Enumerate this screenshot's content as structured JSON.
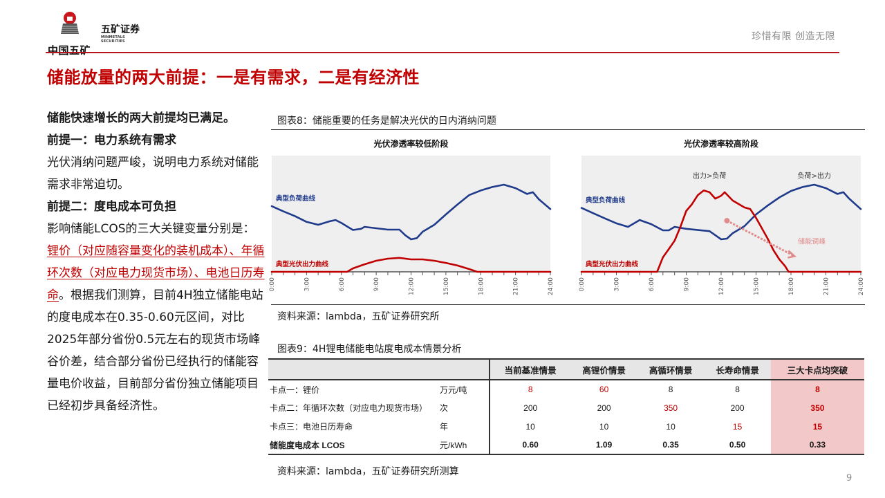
{
  "header": {
    "logo_cn": "中国五矿",
    "brand_cn": "五矿证券",
    "brand_en": "MINMETALS SECURITIES",
    "slogan": "珍惜有限  创造无限",
    "accent_color": "#b4161c"
  },
  "page_title": "储能放量的两大前提：一是有需求，二是有经济性",
  "left_text": {
    "headline": "储能快速增长的两大前提均已满足。",
    "premise1_title": "前提一：电力系统有需求",
    "premise1_body": "光伏消纳问题严峻，说明电力系统对储能需求非常迫切。",
    "premise2_title": "前提二：度电成本可负担",
    "premise2_intro": "影响储能LCOS的三大关键变量分别是：",
    "premise2_highlight": "锂价（对应随容量变化的装机成本）、年循环次数（对应电力现货市场）、电池日历寿命",
    "premise2_rest": "。根据我们测算，目前4H独立储能电站的度电成本在0.35-0.60元区间，对比2025年部分省份0.5元左右的现货市场峰谷价差，结合部分省份已经执行的储能容量电价收益，目前部分省份独立储能项目已经初步具备经济性。"
  },
  "figure8": {
    "caption": "图表8：储能重要的任务是解决光伏的日内消纳问题",
    "source": "资料来源：lambda，五矿证券研究所"
  },
  "figure9": {
    "caption": "图表9：4H锂电储能电站度电成本情景分析",
    "source": "资料来源：lambda，五矿证券研究所测算",
    "headers": [
      "",
      "",
      "当前基准情景",
      "高锂价情景",
      "高循环情景",
      "长寿命情景",
      "三大卡点均突破"
    ],
    "rows": [
      {
        "label": "卡点一：锂价",
        "unit": "万元/吨",
        "values": [
          "8",
          "60",
          "8",
          "8",
          "8"
        ]
      },
      {
        "label": "卡点二：年循环次数（对应电力现货市场）",
        "unit": "次",
        "values": [
          "200",
          "200",
          "350",
          "200",
          "350"
        ]
      },
      {
        "label": "卡点三：电池日历寿命",
        "unit": "年",
        "values": [
          "10",
          "10",
          "10",
          "15",
          "15"
        ]
      },
      {
        "label": "储能度电成本 LCOS",
        "unit": "元/kWh",
        "values": [
          "0.60",
          "1.09",
          "0.35",
          "0.50",
          "0.33"
        ]
      }
    ]
  },
  "chart_data": [
    {
      "type": "line",
      "title": "光伏渗透率较低阶段",
      "xlabel": "",
      "ylabel": "",
      "x_ticks": [
        "0:00",
        "3:00",
        "6:00",
        "9:00",
        "12:00",
        "15:00",
        "18:00",
        "21:00",
        "24:00"
      ],
      "xlim": [
        0,
        24
      ],
      "ylim": [
        0,
        100
      ],
      "grid": false,
      "series": [
        {
          "name": "典型负荷曲线",
          "color": "#1f3a8a",
          "x": [
            0,
            1,
            2,
            3,
            4,
            5,
            5.5,
            6,
            7,
            7.7,
            8,
            9,
            10,
            11,
            11.5,
            12,
            12.5,
            13,
            14,
            15,
            16,
            17,
            18,
            19,
            20,
            21,
            22,
            22.5,
            23,
            24
          ],
          "values": [
            56.5,
            52,
            48,
            43,
            40.5,
            43.5,
            44.6,
            42,
            36,
            37,
            38.7,
            37.5,
            36.3,
            36.3,
            31.5,
            28,
            29,
            34.5,
            40.5,
            49.4,
            58,
            66,
            70,
            73,
            75,
            72,
            67,
            68.5,
            62.5,
            54
          ]
        },
        {
          "name": "典型光伏出力曲线",
          "color": "#c00000",
          "x": [
            0,
            6.5,
            7,
            8,
            9,
            10,
            11,
            12,
            13,
            14,
            15,
            16,
            17,
            17.7,
            24
          ],
          "values": [
            0,
            0,
            3,
            6.5,
            9.5,
            11.3,
            12,
            10.7,
            10.7,
            9.5,
            7.7,
            5.4,
            2.4,
            0,
            0
          ]
        }
      ],
      "annotations": []
    },
    {
      "type": "line",
      "title": "光伏渗透率较高阶段",
      "xlabel": "",
      "ylabel": "",
      "x_ticks": [
        "0:00",
        "3:00",
        "6:00",
        "9:00",
        "12:00",
        "15:00",
        "18:00",
        "21:00",
        "24:00"
      ],
      "xlim": [
        0,
        24
      ],
      "ylim": [
        0,
        100
      ],
      "grid": false,
      "series": [
        {
          "name": "典型负荷曲线",
          "color": "#1f3a8a",
          "x": [
            0,
            1,
            2,
            3,
            4,
            5,
            6,
            7,
            7.5,
            8,
            9,
            11,
            11.5,
            12,
            12.5,
            13,
            14,
            15,
            16,
            17,
            18,
            19,
            20,
            21,
            22,
            22.5,
            23,
            24
          ],
          "values": [
            55,
            50.5,
            46,
            41.7,
            38.7,
            44.6,
            41,
            35.7,
            35.7,
            38.7,
            37,
            35,
            31.5,
            28,
            28.6,
            33.3,
            39.3,
            49.4,
            57,
            64,
            69.6,
            73,
            75,
            72,
            67,
            68.5,
            63,
            54
          ]
        },
        {
          "name": "典型光伏出力曲线",
          "color": "#c00000",
          "x": [
            0,
            6.5,
            7,
            7.5,
            8,
            8.5,
            9,
            9.5,
            10,
            10.5,
            11,
            11.5,
            12,
            12.3,
            13,
            14,
            14.5,
            15,
            15.5,
            16,
            16.5,
            17,
            17.5,
            17.8,
            24
          ],
          "values": [
            0,
            0,
            12.5,
            19.6,
            26.8,
            38.7,
            52.4,
            58.3,
            66,
            70,
            68.5,
            63,
            65.5,
            68.5,
            61.3,
            55.4,
            54,
            46.4,
            37.5,
            28.6,
            18.5,
            10.7,
            4.8,
            0,
            0
          ]
        }
      ],
      "annotations": [
        {
          "text": "出力>负荷",
          "x": 11,
          "y": 80
        },
        {
          "text": "负荷>出力",
          "x": 20,
          "y": 80
        },
        {
          "text": "储能调峰",
          "x": 18.6,
          "y": 24,
          "color": "#e08a8a",
          "arrow_from": [
            12.5,
            44
          ],
          "arrow_to": [
            18.2,
            14
          ]
        }
      ]
    }
  ],
  "page_number": "9"
}
